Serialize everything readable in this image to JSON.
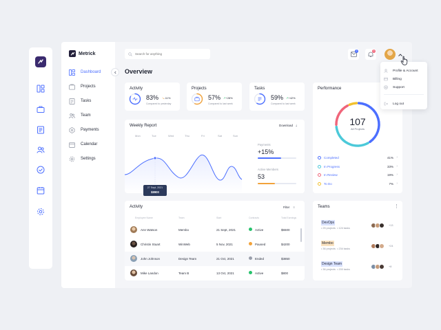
{
  "brand": {
    "name": "Metrick"
  },
  "nav": [
    {
      "label": "Dashboard",
      "icon": "dashboard-icon",
      "active": true
    },
    {
      "label": "Projects",
      "icon": "folder-icon"
    },
    {
      "label": "Tasks",
      "icon": "list-icon"
    },
    {
      "label": "Team",
      "icon": "team-icon"
    },
    {
      "label": "Payments",
      "icon": "payments-icon"
    },
    {
      "label": "Calendar",
      "icon": "calendar-icon"
    },
    {
      "label": "Settings",
      "icon": "gear-icon"
    }
  ],
  "search": {
    "placeholder": "Search for anything"
  },
  "header": {
    "messages_count": "2",
    "notifications_count": "3"
  },
  "page_title": "Overview",
  "stats": [
    {
      "title": "Activity",
      "value": "83%",
      "delta": "-11%",
      "delta_dir": "down",
      "sub": "Compared to yesterday",
      "progress": 0.83,
      "color": "#4c6fff"
    },
    {
      "title": "Projects",
      "value": "57%",
      "delta": "+28%",
      "delta_dir": "up",
      "sub": "Compared to last week",
      "progress": 0.57,
      "color": "#f2a23a"
    },
    {
      "title": "Tasks",
      "value": "59%",
      "delta": "+42%",
      "delta_dir": "up",
      "sub": "Compared to last week",
      "progress": 0.59,
      "color": "#4c6fff"
    }
  ],
  "weekly": {
    "title": "Weekly Report",
    "download_label": "Download",
    "days": [
      "Mon",
      "Tue",
      "Wed",
      "Thu",
      "Fri",
      "Sat",
      "Sun"
    ],
    "tooltip": {
      "date": "27 Sept, 2021",
      "value": "$8900"
    },
    "payments_label": "Payments",
    "payments_value": "+15%",
    "payments_progress": 0.6,
    "members_label": "Active Members",
    "members_value": "53",
    "members_progress": 0.45
  },
  "performance": {
    "title": "Performance",
    "total": "107",
    "total_label": "All Projects",
    "items": [
      {
        "label": "Completed",
        "value": "41%",
        "color": "#4c6fff"
      },
      {
        "label": "In Progress",
        "value": "33%",
        "color": "#4cc9d9"
      },
      {
        "label": "In Review",
        "value": "19%",
        "color": "#f0657a"
      },
      {
        "label": "To Do",
        "value": "7%",
        "color": "#f2c12e"
      }
    ]
  },
  "activity_table": {
    "title": "Activity",
    "filter_label": "Filter",
    "columns": [
      "Employee Name",
      "Team",
      "Start",
      "Contracts",
      "Total Earnings"
    ],
    "rows": [
      {
        "name": "Ann Watson",
        "team": "Membo",
        "start": "21 Sept, 2021",
        "status": "Active",
        "status_color": "#27c26c",
        "earnings": "$6500"
      },
      {
        "name": "Christin Stuart",
        "team": "WinWeb",
        "start": "5 Nov, 2021",
        "status": "Paused",
        "status_color": "#f2a23a",
        "earnings": "$4200"
      },
      {
        "name": "John Johnson",
        "team": "Design Team",
        "start": "21 Oct, 2021",
        "status": "Ended",
        "status_color": "#9a9fab",
        "earnings": "$3850"
      },
      {
        "name": "Mike Landon",
        "team": "Team B",
        "start": "13 Oct, 2021",
        "status": "Active",
        "status_color": "#27c26c",
        "earnings": "$800"
      }
    ]
  },
  "teams": {
    "title": "Teams",
    "items": [
      {
        "name": "DevOps",
        "projects": "• 25 projects",
        "tasks": "• 124 tasks",
        "more": "+13",
        "highlight": "#d9e2ff"
      },
      {
        "name": "Membo",
        "projects": "• 36 projects",
        "tasks": "• 234 tasks",
        "more": "+24",
        "highlight": "#fbe3c0"
      },
      {
        "name": "Design Team",
        "projects": "• 36 projects",
        "tasks": "• 200 tasks",
        "more": "+8",
        "highlight": "#d9e2ff"
      }
    ]
  },
  "dropdown": {
    "items": [
      {
        "label": "Profile & Account",
        "icon": "user-icon"
      },
      {
        "label": "Billing",
        "icon": "billing-icon"
      },
      {
        "label": "Support",
        "icon": "support-icon"
      },
      {
        "label": "Log out",
        "icon": "logout-icon"
      }
    ]
  },
  "colors": {
    "accent": "#4c6fff",
    "brand_dark": "#3a2a6e",
    "background": "#eef0f4"
  }
}
